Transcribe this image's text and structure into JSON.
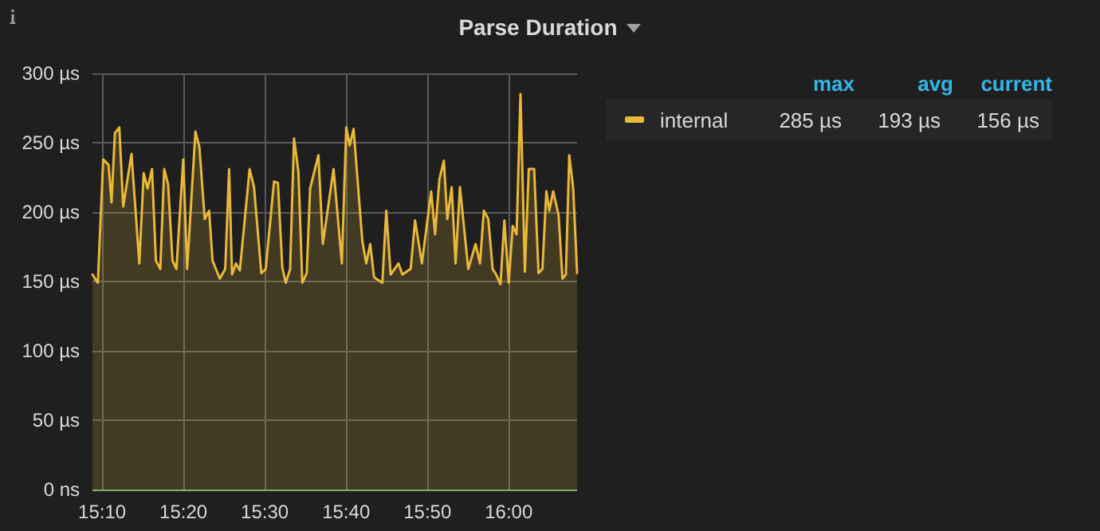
{
  "chart_data": {
    "type": "area",
    "title": "Parse Duration",
    "x": [
      15.147,
      15.158,
      15.169,
      15.18,
      15.186,
      15.193,
      15.202,
      15.21,
      15.227,
      15.243,
      15.252,
      15.26,
      15.269,
      15.277,
      15.286,
      15.294,
      15.302,
      15.311,
      15.319,
      15.333,
      15.341,
      15.358,
      15.366,
      15.377,
      15.386,
      15.393,
      15.408,
      15.419,
      15.427,
      15.433,
      15.441,
      15.449,
      15.469,
      15.478,
      15.493,
      15.502,
      15.519,
      15.527,
      15.536,
      15.543,
      15.552,
      15.56,
      15.569,
      15.577,
      15.586,
      15.593,
      15.61,
      15.619,
      15.641,
      15.658,
      15.667,
      15.674,
      15.682,
      15.7,
      15.708,
      15.716,
      15.724,
      15.741,
      15.749,
      15.758,
      15.774,
      15.782,
      15.799,
      15.808,
      15.822,
      15.841,
      15.849,
      15.858,
      15.867,
      15.874,
      15.883,
      15.891,
      15.9,
      15.908,
      15.917,
      15.932,
      15.941,
      15.949,
      15.958,
      15.967,
      15.974,
      15.983,
      15.991,
      16.0,
      16.008,
      16.016,
      16.024,
      16.033,
      16.041,
      16.052,
      16.061,
      16.069,
      16.077,
      16.083,
      16.091,
      16.102,
      16.11,
      16.117,
      16.124,
      16.132,
      16.14
    ],
    "series": [
      {
        "name": "internal",
        "color": "#eab839",
        "values": [
          155,
          149,
          238,
          234,
          207,
          257,
          261,
          204,
          242,
          163,
          228,
          217,
          231,
          165,
          159,
          231,
          220,
          165,
          159,
          238,
          159,
          258,
          247,
          195,
          201,
          165,
          152,
          159,
          231,
          155,
          163,
          158,
          231,
          218,
          156,
          159,
          222,
          221,
          160,
          149,
          159,
          253,
          229,
          149,
          156,
          217,
          241,
          177,
          231,
          163,
          261,
          248,
          260,
          179,
          163,
          177,
          153,
          149,
          201,
          155,
          163,
          155,
          159,
          194,
          163,
          215,
          184,
          224,
          237,
          195,
          218,
          163,
          218,
          190,
          159,
          177,
          163,
          201,
          195,
          159,
          155,
          148,
          194,
          149,
          190,
          184,
          285,
          157,
          231,
          231,
          156,
          159,
          215,
          201,
          215,
          198,
          152,
          155,
          241,
          217,
          156
        ]
      }
    ],
    "xlim": [
      15.147,
      16.14
    ],
    "xticks": [
      {
        "value": 15.1667,
        "label": "15:10"
      },
      {
        "value": 15.3333,
        "label": "15:20"
      },
      {
        "value": 15.5,
        "label": "15:30"
      },
      {
        "value": 15.6667,
        "label": "15:40"
      },
      {
        "value": 15.8333,
        "label": "15:50"
      },
      {
        "value": 16.0,
        "label": "16:00"
      }
    ],
    "ylim": [
      0,
      300
    ],
    "yticks": [
      {
        "value": 0,
        "label": "0 ns"
      },
      {
        "value": 50,
        "label": "50 µs"
      },
      {
        "value": 100,
        "label": "100 µs"
      },
      {
        "value": 150,
        "label": "150 µs"
      },
      {
        "value": 200,
        "label": "200 µs"
      },
      {
        "value": 250,
        "label": "250 µs"
      },
      {
        "value": 300,
        "label": "300 µs"
      }
    ],
    "grid": true,
    "legend": "top right",
    "marker": "none",
    "line_style": "solid",
    "annotations": [
      "max",
      "avg",
      "current",
      "285 µs",
      "193 µs",
      "156 µs"
    ]
  }
}
